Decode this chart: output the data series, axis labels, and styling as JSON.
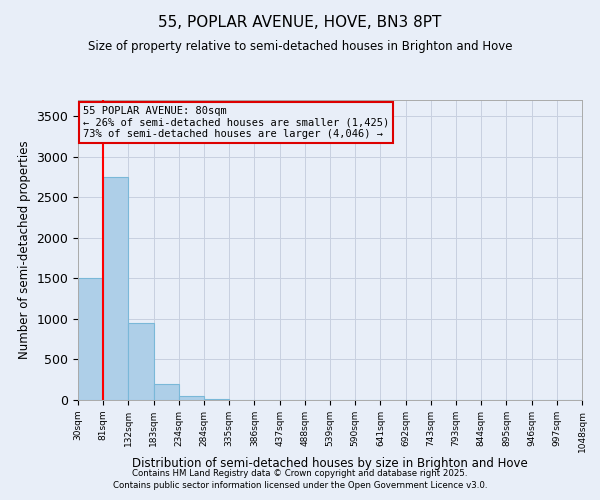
{
  "title1": "55, POPLAR AVENUE, HOVE, BN3 8PT",
  "title2": "Size of property relative to semi-detached houses in Brighton and Hove",
  "xlabel": "Distribution of semi-detached houses by size in Brighton and Hove",
  "ylabel": "Number of semi-detached properties",
  "bar_labels": [
    "30sqm",
    "81sqm",
    "132sqm",
    "183sqm",
    "234sqm",
    "284sqm",
    "335sqm",
    "386sqm",
    "437sqm",
    "488sqm",
    "539sqm",
    "590sqm",
    "641sqm",
    "692sqm",
    "743sqm",
    "793sqm",
    "844sqm",
    "895sqm",
    "946sqm",
    "997sqm",
    "1048sqm"
  ],
  "bar_values": [
    1500,
    2750,
    950,
    200,
    50,
    15,
    5,
    3,
    2,
    1,
    1,
    0,
    0,
    0,
    0,
    0,
    0,
    0,
    0,
    0
  ],
  "bar_color": "#aecfe8",
  "bar_edge_color": "#7ab8d8",
  "annotation_title": "55 POPLAR AVENUE: 80sqm",
  "annotation_line2": "← 26% of semi-detached houses are smaller (1,425)",
  "annotation_line3": "73% of semi-detached houses are larger (4,046) →",
  "annotation_box_color": "#dd0000",
  "ylim": [
    0,
    3700
  ],
  "yticks": [
    0,
    500,
    1000,
    1500,
    2000,
    2500,
    3000,
    3500
  ],
  "footer1": "Contains HM Land Registry data © Crown copyright and database right 2025.",
  "footer2": "Contains public sector information licensed under the Open Government Licence v3.0.",
  "bg_color": "#e8eef8",
  "grid_color": "#c8d0e0"
}
